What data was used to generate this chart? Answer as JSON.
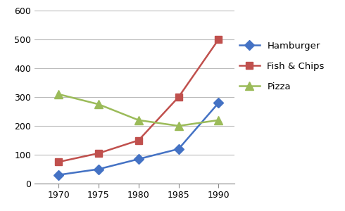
{
  "years": [
    1970,
    1975,
    1980,
    1985,
    1990
  ],
  "hamburger": [
    30,
    50,
    85,
    120,
    280
  ],
  "fish_chips": [
    75,
    105,
    150,
    300,
    500
  ],
  "pizza": [
    310,
    275,
    220,
    200,
    220
  ],
  "series_labels": [
    "Hamburger",
    "Fish & Chips",
    "Pizza"
  ],
  "colors": {
    "hamburger": "#4472C4",
    "fish_chips": "#C0504D",
    "pizza": "#9BBB59"
  },
  "markers": {
    "hamburger": "D",
    "fish_chips": "s",
    "pizza": "^"
  },
  "ylim": [
    0,
    600
  ],
  "yticks": [
    0,
    100,
    200,
    300,
    400,
    500,
    600
  ],
  "xlim_left": 1967,
  "xlim_right": 1992,
  "grid_color": "#BBBBBB",
  "bg_color": "#FFFFFF",
  "tick_fontsize": 9,
  "legend_fontsize": 9.5
}
